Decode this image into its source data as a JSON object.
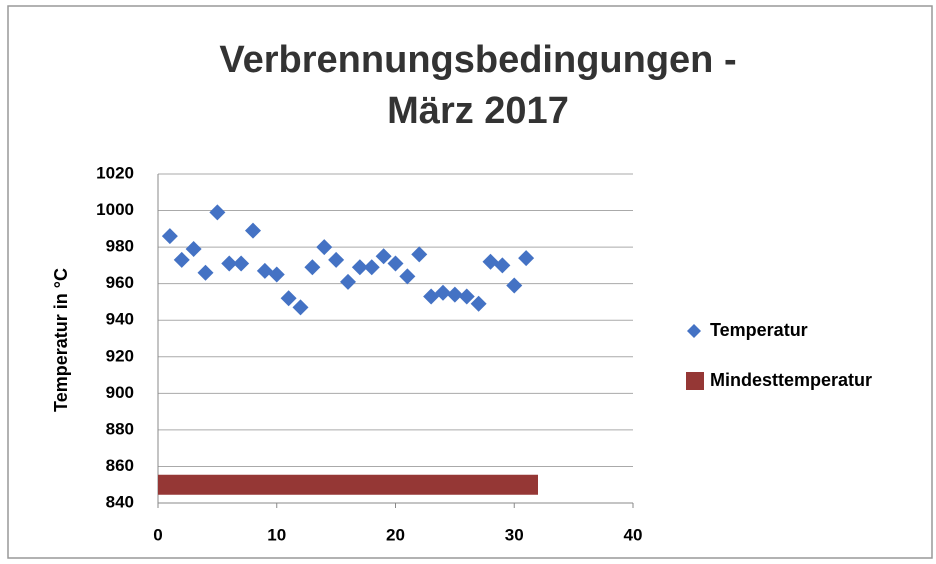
{
  "chart_data": {
    "type": "scatter",
    "title": [
      "Verbrennungsbedingungen -",
      "März 2017"
    ],
    "y_label": "Temperatur in °C",
    "xlim": [
      0,
      40
    ],
    "xticks": [
      0,
      10,
      20,
      30,
      40
    ],
    "ylim": [
      840,
      1020
    ],
    "yticks": [
      840,
      860,
      880,
      900,
      920,
      940,
      960,
      980,
      1000,
      1020
    ],
    "grid": true,
    "legend": "right",
    "series": [
      {
        "name": "Temperatur",
        "color": "#4472c4",
        "marker": "diamond",
        "x": [
          1,
          2,
          3,
          4,
          5,
          6,
          7,
          8,
          9,
          10,
          11,
          12,
          13,
          14,
          15,
          16,
          17,
          18,
          19,
          20,
          21,
          22,
          23,
          24,
          25,
          26,
          27,
          28,
          29,
          30,
          31
        ],
        "values": [
          986,
          973,
          979,
          966,
          999,
          971,
          971,
          989,
          967,
          965,
          952,
          947,
          969,
          980,
          973,
          961,
          969,
          969,
          975,
          971,
          964,
          976,
          953,
          955,
          954,
          953,
          949,
          972,
          970,
          959,
          974
        ]
      },
      {
        "name": "Mindesttemperatur",
        "color": "#953735",
        "marker": "line",
        "x": [
          0,
          32
        ],
        "values": [
          850,
          850
        ]
      }
    ]
  }
}
